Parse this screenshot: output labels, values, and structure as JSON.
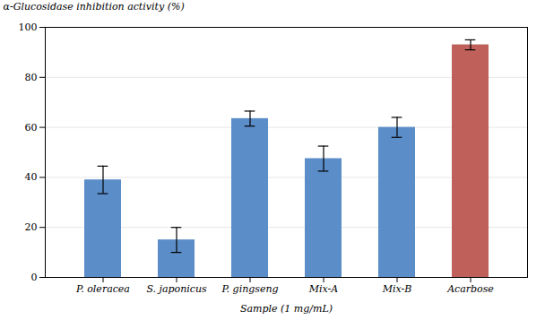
{
  "chart_data": {
    "type": "bar",
    "categories": [
      "P. oleracea",
      "S. japonicus",
      "P. gingseng",
      "Mix-A",
      "Mix-B",
      "Acarbose"
    ],
    "values": [
      39.0,
      15.0,
      63.5,
      47.5,
      60.0,
      93.0
    ],
    "errors": [
      5.5,
      5.0,
      3.0,
      5.0,
      4.0,
      2.0
    ],
    "colors": [
      "#5b8dc9",
      "#5b8dc9",
      "#5b8dc9",
      "#5b8dc9",
      "#5b8dc9",
      "#c0605a"
    ],
    "xlabel": "Sample (1 mg/mL)",
    "ylabel": "α-Glucosidase inhibition activity (%)",
    "ylim": [
      0,
      100
    ],
    "yticks": [
      0,
      20,
      40,
      60,
      80,
      100
    ],
    "grid": true
  }
}
